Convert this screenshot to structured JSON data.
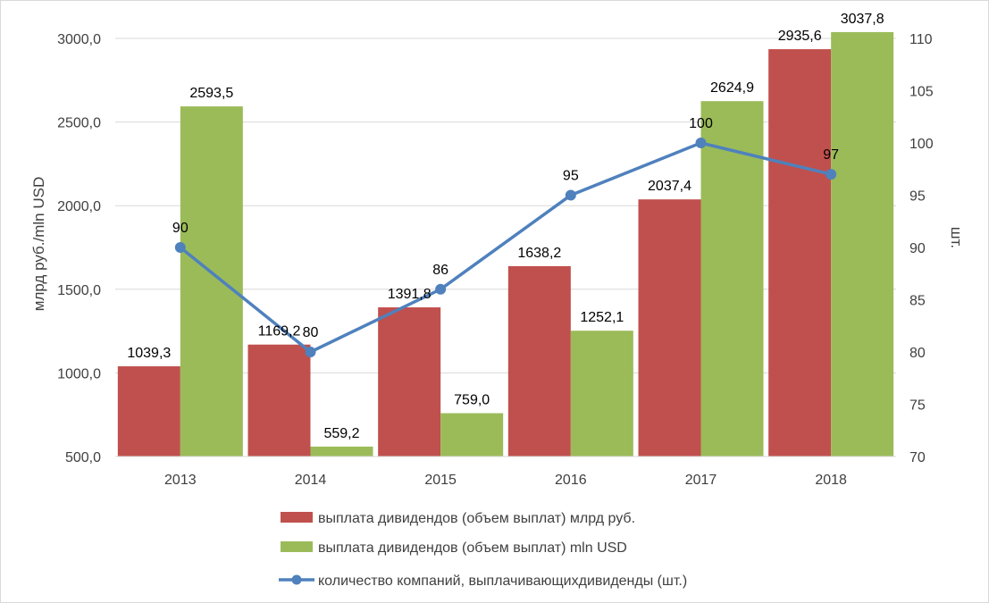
{
  "chart_data": {
    "type": "bar",
    "categories": [
      "2013",
      "2014",
      "2015",
      "2016",
      "2017",
      "2018"
    ],
    "series": [
      {
        "name": "выплата дивидендов (объем выплат) млрд руб.",
        "type": "bar",
        "axis": "left",
        "color": "#c0504d",
        "values": [
          1039.3,
          1169.2,
          1391.8,
          1638.2,
          2037.4,
          2935.6
        ],
        "labels": [
          "1039,3",
          "1169,2",
          "1391,8",
          "1638,2",
          "2037,4",
          "2935,6"
        ]
      },
      {
        "name": "выплата дивидендов (объем выплат) mln USD",
        "type": "bar",
        "axis": "left",
        "color": "#9bbb59",
        "values": [
          2593.5,
          559.2,
          759.0,
          1252.1,
          2624.9,
          3037.8
        ],
        "labels": [
          "2593,5",
          "559,2",
          "759,0",
          "1252,1",
          "2624,9",
          "3037,8"
        ]
      },
      {
        "name": "количество компаний, выплачивающихдивиденды (шт.)",
        "type": "line",
        "axis": "right",
        "color": "#4f81bd",
        "values": [
          90,
          80,
          86,
          95,
          100,
          97
        ],
        "labels": [
          "90",
          "80",
          "86",
          "95",
          "100",
          "97"
        ]
      }
    ],
    "y_left": {
      "label": "млрд руб./mln USD",
      "ylim": [
        500,
        3000
      ],
      "ticks": [
        500,
        1000,
        1500,
        2000,
        2500,
        3000
      ],
      "tick_labels": [
        "500,0",
        "1000,0",
        "1500,0",
        "2000,0",
        "2500,0",
        "3000,0"
      ]
    },
    "y_right": {
      "label": "шт.",
      "ylim": [
        70,
        110
      ],
      "ticks": [
        70,
        75,
        80,
        85,
        90,
        95,
        100,
        105,
        110
      ],
      "tick_labels": [
        "70",
        "75",
        "80",
        "85",
        "90",
        "95",
        "100",
        "105",
        "110"
      ]
    },
    "grid": true,
    "legend_position": "bottom"
  }
}
